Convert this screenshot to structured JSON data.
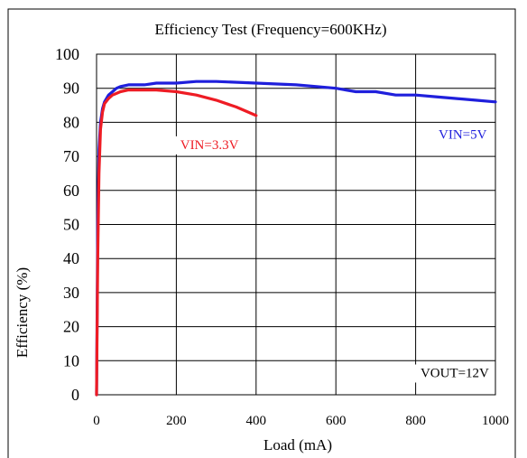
{
  "chart_data": {
    "type": "line",
    "title": "Efficiency Test (Frequency=600KHz)",
    "xlabel": "Load (mA)",
    "ylabel": "Efficiency (%)",
    "xlim": [
      0,
      1000
    ],
    "ylim": [
      0,
      100
    ],
    "xticks": [
      0,
      200,
      400,
      600,
      800,
      1000
    ],
    "yticks": [
      0,
      10,
      20,
      30,
      40,
      50,
      60,
      70,
      80,
      90,
      100
    ],
    "xtick_labels": [
      "0",
      "200",
      "400",
      "600",
      "800",
      "1000"
    ],
    "ytick_labels": [
      "0",
      "10",
      "20",
      "30",
      "40",
      "50",
      "60",
      "70",
      "80",
      "90",
      "100"
    ],
    "grid": true,
    "series": [
      {
        "name": "VIN=5V",
        "color": "#1f1fdc",
        "x": [
          0,
          3,
          6,
          10,
          15,
          20,
          30,
          40,
          50,
          60,
          80,
          100,
          120,
          150,
          200,
          250,
          300,
          400,
          500,
          600,
          650,
          700,
          750,
          800,
          850,
          900,
          950,
          1000
        ],
        "y": [
          0,
          50,
          72,
          80,
          84,
          86,
          88,
          89,
          90,
          90.5,
          91,
          91,
          91,
          91.5,
          91.5,
          92,
          92,
          91.5,
          91,
          90,
          89,
          89,
          88,
          88,
          87.5,
          87,
          86.5,
          86
        ]
      },
      {
        "name": "VIN=3.3V",
        "color": "#ee1c24",
        "x": [
          0,
          3,
          6,
          10,
          15,
          20,
          30,
          40,
          50,
          60,
          80,
          100,
          150,
          200,
          250,
          300,
          350,
          400
        ],
        "y": [
          0,
          40,
          65,
          78,
          83,
          85.5,
          87,
          88,
          88.5,
          89,
          89.5,
          89.5,
          89.5,
          89,
          88,
          86.5,
          84.5,
          82
        ]
      }
    ],
    "annotations": [
      {
        "text": "VIN=3.3V",
        "color": "#ee1c24",
        "x": 283,
        "y": 73.5
      },
      {
        "text": "VIN=5V",
        "color": "#1f1fdc",
        "x": 918,
        "y": 76.5
      },
      {
        "text": "VOUT=12V",
        "color": "#000000",
        "x": 898,
        "y": 6.5
      }
    ]
  }
}
